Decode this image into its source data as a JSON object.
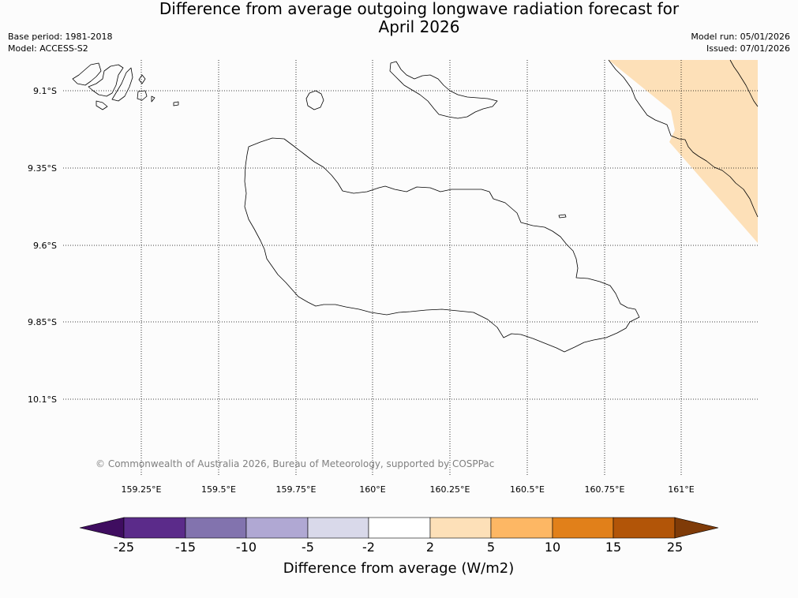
{
  "title": {
    "line1": "Difference from average outgoing longwave radiation forecast for",
    "line2": "April 2026"
  },
  "meta": {
    "base_period": "Base period: 1981-2018",
    "model": "Model: ACCESS-S2",
    "model_run": "Model run: 05/01/2026",
    "issued": "Issued: 07/01/2026"
  },
  "map": {
    "latitude_labels": [
      "9.1°S",
      "9.35°S",
      "9.6°S",
      "9.85°S",
      "10.1°S"
    ],
    "longitude_labels": [
      "159.25°E",
      "159.5°E",
      "159.75°E",
      "160°E",
      "160.25°E",
      "160.5°E",
      "160.75°E",
      "161°E"
    ],
    "copyright": "© Commonwealth of Australia 2026, Bureau of Meteorology, supported by COSPPac",
    "shaded_category": "2 to 5"
  },
  "colorbar": {
    "title": "Difference from average (W/m2)",
    "tick_labels": [
      "-25",
      "-15",
      "-10",
      "-5",
      "-2",
      "2",
      "5",
      "10",
      "15",
      "25"
    ],
    "colors": [
      "#3f0d60",
      "#5b2b8a",
      "#8273ae",
      "#b0a8d3",
      "#d9d9ea",
      "#ffffff",
      "#fde0b8",
      "#fdb764",
      "#e1801a",
      "#b25508",
      "#7f3b08"
    ]
  }
}
